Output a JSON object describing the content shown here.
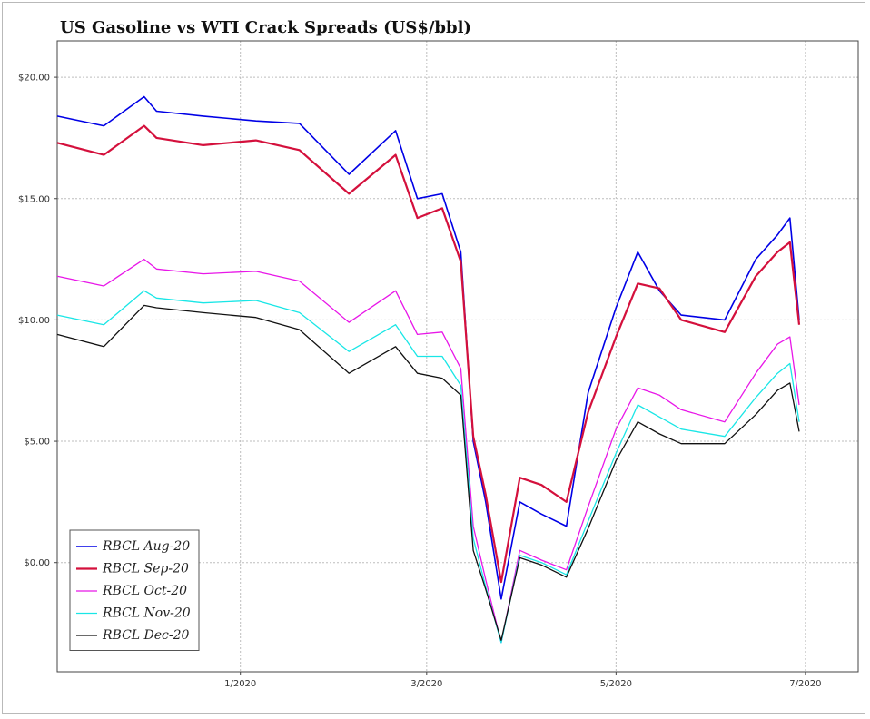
{
  "chart_data": {
    "type": "line",
    "title": "US Gasoline vs WTI Crack Spreads (US$/bbl)",
    "xlabel": "",
    "ylabel": "",
    "x_ticks": [
      "1/2020",
      "3/2020",
      "5/2020",
      "7/2020"
    ],
    "y_ticks": [
      "$0.00",
      "$5.00",
      "$10.00",
      "$15.00",
      "$20.00"
    ],
    "ylim": [
      -4.5,
      21.5
    ],
    "xlim": [
      "2019-11-03",
      "2020-07-18"
    ],
    "grid": true,
    "legend_position": "bottom-left",
    "x": [
      "2019-11-03",
      "2019-11-18",
      "2019-12-01",
      "2019-12-05",
      "2019-12-20",
      "2020-01-06",
      "2020-01-20",
      "2020-02-05",
      "2020-02-20",
      "2020-02-27",
      "2020-03-06",
      "2020-03-12",
      "2020-03-16",
      "2020-03-20",
      "2020-03-25",
      "2020-03-31",
      "2020-04-07",
      "2020-04-15",
      "2020-04-22",
      "2020-05-01",
      "2020-05-08",
      "2020-05-15",
      "2020-05-22",
      "2020-06-05",
      "2020-06-15",
      "2020-06-22",
      "2020-06-26",
      "2020-06-29"
    ],
    "series": [
      {
        "name": "RBCL Aug-20",
        "color": "#0000e6",
        "width": 1.6,
        "values": [
          18.4,
          18.0,
          19.2,
          18.6,
          18.4,
          18.2,
          18.1,
          16.0,
          17.8,
          15.0,
          15.2,
          12.8,
          5.0,
          2.5,
          -1.5,
          2.5,
          2.0,
          1.5,
          7.0,
          10.5,
          12.8,
          11.2,
          10.2,
          10.0,
          12.5,
          13.5,
          14.2,
          10.0
        ]
      },
      {
        "name": "RBCL Sep-20",
        "color": "#d4103c",
        "width": 2.2,
        "values": [
          17.3,
          16.8,
          18.0,
          17.5,
          17.2,
          17.4,
          17.0,
          15.2,
          16.8,
          14.2,
          14.6,
          12.4,
          5.2,
          2.8,
          -0.8,
          3.5,
          3.2,
          2.5,
          6.2,
          9.3,
          11.5,
          11.3,
          10.0,
          9.5,
          11.8,
          12.8,
          13.2,
          9.8
        ]
      },
      {
        "name": "RBCL Oct-20",
        "color": "#e817e8",
        "width": 1.3,
        "values": [
          11.8,
          11.4,
          12.5,
          12.1,
          11.9,
          12.0,
          11.6,
          9.9,
          11.2,
          9.4,
          9.5,
          8.0,
          1.5,
          -0.7,
          -3.3,
          0.5,
          0.1,
          -0.3,
          2.3,
          5.5,
          7.2,
          6.9,
          6.3,
          5.8,
          7.8,
          9.0,
          9.3,
          6.5
        ]
      },
      {
        "name": "RBCL Nov-20",
        "color": "#19e6e6",
        "width": 1.3,
        "values": [
          10.2,
          9.8,
          11.2,
          10.9,
          10.7,
          10.8,
          10.3,
          8.7,
          9.8,
          8.5,
          8.5,
          7.3,
          1.0,
          -1.0,
          -3.3,
          0.3,
          0.0,
          -0.5,
          1.7,
          4.5,
          6.5,
          6.0,
          5.5,
          5.2,
          6.8,
          7.8,
          8.2,
          5.8
        ]
      },
      {
        "name": "RBCL Dec-20",
        "color": "#111111",
        "width": 1.3,
        "values": [
          9.4,
          8.9,
          10.6,
          10.5,
          10.3,
          10.1,
          9.6,
          7.8,
          8.9,
          7.8,
          7.6,
          6.9,
          0.5,
          -1.1,
          -3.2,
          0.2,
          -0.1,
          -0.6,
          1.4,
          4.2,
          5.8,
          5.3,
          4.9,
          4.9,
          6.1,
          7.1,
          7.4,
          5.4
        ]
      }
    ]
  }
}
